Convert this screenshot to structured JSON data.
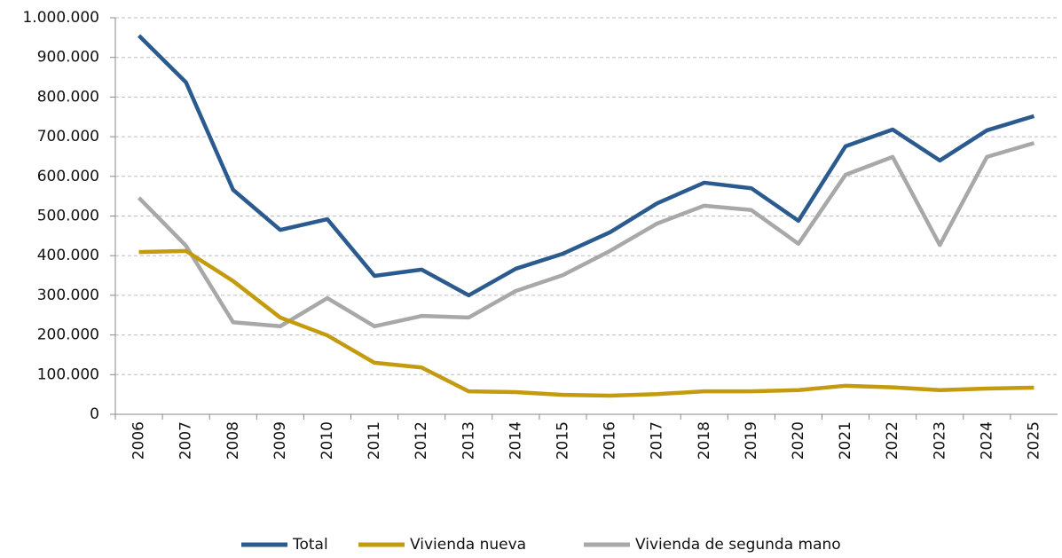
{
  "chart_data": {
    "type": "line",
    "categories": [
      "2006",
      "2007",
      "2008",
      "2009",
      "2010",
      "2011",
      "2012",
      "2013",
      "2014",
      "2015",
      "2016",
      "2017",
      "2018",
      "2019",
      "2020",
      "2021",
      "2022",
      "2023",
      "2024",
      "2025"
    ],
    "series": [
      {
        "name": "Total",
        "color": "#2b5b8e",
        "values": [
          955000,
          837000,
          566000,
          465000,
          492000,
          349000,
          365000,
          300000,
          367000,
          405000,
          459000,
          532000,
          584000,
          570000,
          488000,
          676000,
          718000,
          640000,
          716000,
          752000
        ]
      },
      {
        "name": "Vivienda nueva",
        "color": "#c39b0c",
        "values": [
          409000,
          412000,
          336000,
          244000,
          199000,
          130000,
          118000,
          58000,
          56000,
          49000,
          47000,
          51000,
          58000,
          58000,
          61000,
          72000,
          68000,
          61000,
          65000,
          67000
        ]
      },
      {
        "name": "Vivienda de segunda mano",
        "color": "#a8a8a8",
        "values": [
          546000,
          425000,
          232000,
          222000,
          293000,
          222000,
          248000,
          244000,
          311000,
          351000,
          412000,
          481000,
          526000,
          515000,
          430000,
          604000,
          649000,
          427000,
          649000,
          684000
        ]
      }
    ],
    "ylim": [
      0,
      1000000
    ],
    "yticks": [
      0,
      {
        "value": 100000,
        "label": "100.000"
      },
      {
        "value": 200000,
        "label": "200.000"
      },
      {
        "value": 300000,
        "label": "300.000"
      },
      {
        "value": 400000,
        "label": "400.000"
      },
      {
        "value": 500000,
        "label": "500.000"
      },
      {
        "value": 600000,
        "label": "600.000"
      },
      {
        "value": 700000,
        "label": "700.000"
      },
      {
        "value": 800000,
        "label": "800.000"
      },
      {
        "value": 900000,
        "label": "900.000"
      },
      {
        "value": 1000000,
        "label": "1.000.000"
      }
    ],
    "grid": true,
    "legend": "bottom"
  }
}
